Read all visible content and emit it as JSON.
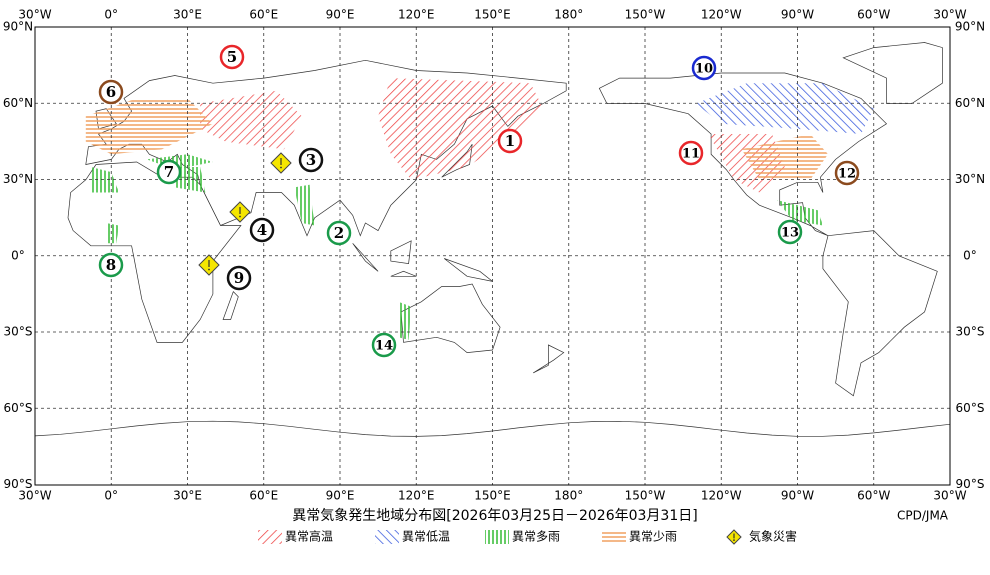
{
  "map": {
    "longitude_labels": [
      "30°W",
      "0°",
      "30°E",
      "60°E",
      "90°E",
      "120°E",
      "150°E",
      "180°",
      "150°W",
      "120°W",
      "90°W",
      "60°W",
      "30°W"
    ],
    "latitude_labels": [
      "90°N",
      "60°N",
      "30°N",
      "0°",
      "30°S",
      "60°S",
      "90°S"
    ],
    "markers": [
      {
        "number": "1",
        "color": "#e8262a"
      },
      {
        "number": "2",
        "color": "#1a9a4a"
      },
      {
        "number": "3",
        "color": "#111111"
      },
      {
        "number": "4",
        "color": "#111111"
      },
      {
        "number": "5",
        "color": "#e8262a"
      },
      {
        "number": "6",
        "color": "#8b4a1e"
      },
      {
        "number": "7",
        "color": "#1a9a4a"
      },
      {
        "number": "8",
        "color": "#1a9a4a"
      },
      {
        "number": "9",
        "color": "#111111"
      },
      {
        "number": "10",
        "color": "#1a2ad0"
      },
      {
        "number": "11",
        "color": "#e8262a"
      },
      {
        "number": "12",
        "color": "#8b4a1e"
      },
      {
        "number": "13",
        "color": "#1a9a4a"
      },
      {
        "number": "14",
        "color": "#1a9a4a"
      }
    ],
    "title": "異常気象発生地域分布図[2026年03月25日－2026年03月31日]",
    "credit": "CPD/JMA",
    "legend": [
      {
        "label": "異常高温",
        "color": "#ee4444"
      },
      {
        "label": "異常低温",
        "color": "#3355dd"
      },
      {
        "label": "異常多雨",
        "color": "#33bb33"
      },
      {
        "label": "異常少雨",
        "color": "#f0a060"
      },
      {
        "label": "気象災害",
        "color": "#f5e600"
      }
    ]
  }
}
